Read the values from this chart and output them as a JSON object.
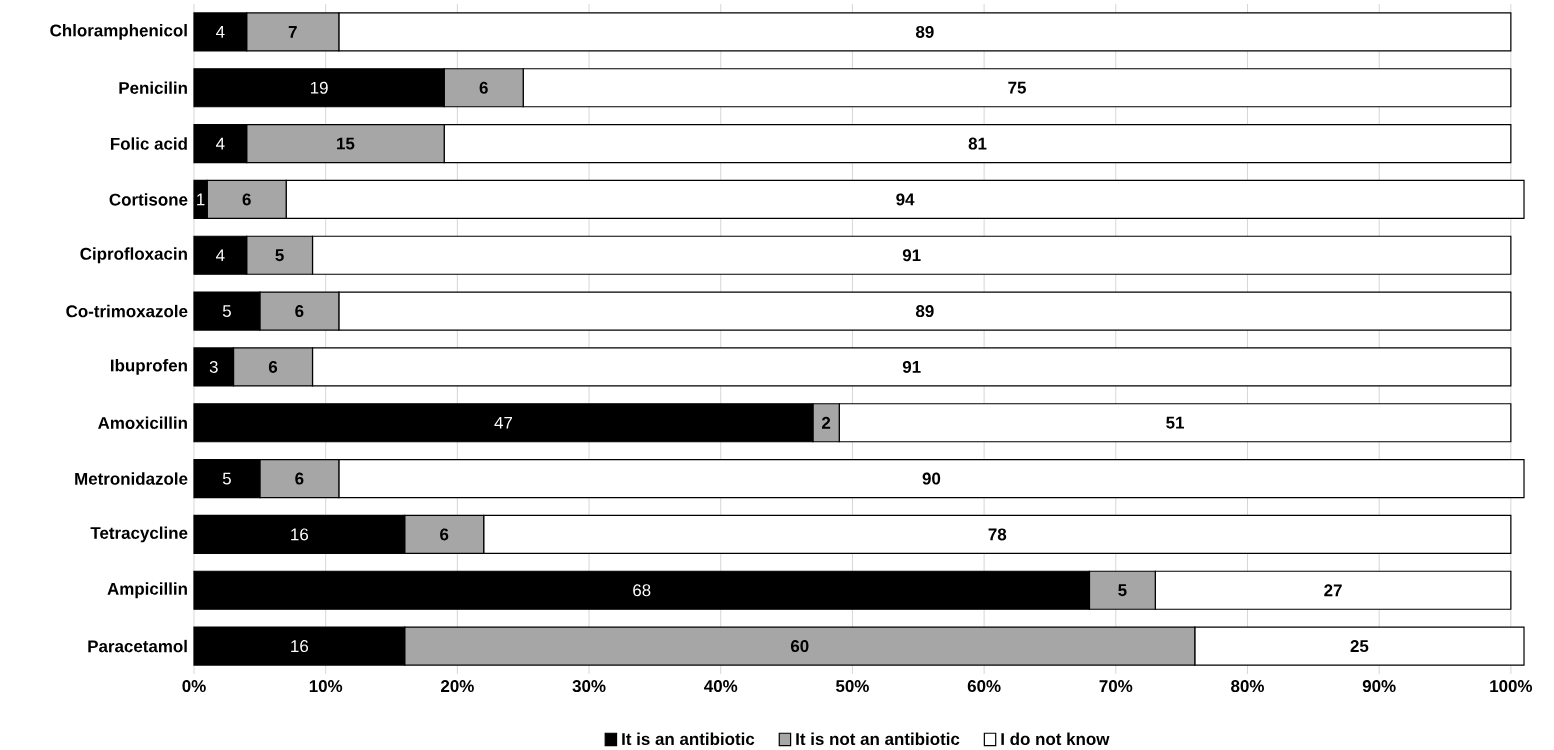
{
  "chart_data": {
    "type": "bar",
    "orientation": "horizontal",
    "stacked": true,
    "categories": [
      "Chloramphenicol",
      "Penicilin",
      "Folic acid",
      "Cortisone",
      "Ciprofloxacin",
      "Co-trimoxazole",
      "Ibuprofen",
      "Amoxicillin",
      "Metronidazole",
      "Tetracycline",
      "Ampicillin",
      "Paracetamol"
    ],
    "series": [
      {
        "name": "It is an antibiotic",
        "color": "#000000",
        "values": [
          4,
          19,
          4,
          1,
          4,
          5,
          3,
          47,
          5,
          16,
          68,
          16
        ]
      },
      {
        "name": "It is not an antibiotic",
        "color": "#a6a6a6",
        "values": [
          7,
          6,
          15,
          6,
          5,
          6,
          6,
          2,
          6,
          6,
          5,
          60
        ]
      },
      {
        "name": "I do not know",
        "color": "#ffffff",
        "values": [
          89,
          75,
          81,
          94,
          91,
          89,
          91,
          51,
          90,
          78,
          27,
          25
        ]
      }
    ],
    "xlim": [
      0,
      101
    ],
    "xticks": [
      {
        "value": 0,
        "label": "0%"
      },
      {
        "value": 10,
        "label": "10%"
      },
      {
        "value": 20,
        "label": "20%"
      },
      {
        "value": 30,
        "label": "30%"
      },
      {
        "value": 40,
        "label": "40%"
      },
      {
        "value": 50,
        "label": "50%"
      },
      {
        "value": 60,
        "label": "60%"
      },
      {
        "value": 70,
        "label": "70%"
      },
      {
        "value": 80,
        "label": "80%"
      },
      {
        "value": 90,
        "label": "90%"
      },
      {
        "value": 100,
        "label": "100%"
      }
    ],
    "grid": "x",
    "legend": "bottom",
    "data_labels": true
  }
}
